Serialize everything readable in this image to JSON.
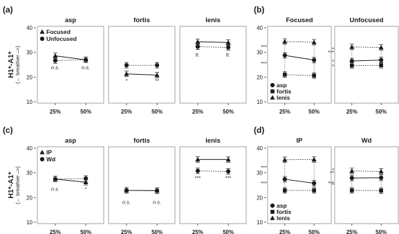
{
  "chart_data": [
    {
      "type": "line",
      "panel": "(a)",
      "ylabel": "H1*-A1*",
      "ylabel_sub": "(← breathier –>)",
      "ylim": [
        10,
        40
      ],
      "yticks": [
        "10",
        "20",
        "30",
        "40"
      ],
      "x": [
        "25%",
        "50%"
      ],
      "legend": {
        "placement": "top-left",
        "entries": [
          "Focused",
          "Unfocused"
        ]
      },
      "facets": [
        {
          "title": "asp",
          "series": [
            {
              "name": "Focused",
              "marker": "triangle",
              "linestyle": "solid",
              "values": [
                28.6,
                27.0
              ]
            },
            {
              "name": "Unfocused",
              "marker": "circle",
              "linestyle": "dotted",
              "values": [
                26.7,
                27.0
              ]
            }
          ],
          "annotations": [
            {
              "text": "n.s.",
              "x": "25%",
              "y": 23.2,
              "italic": true
            },
            {
              "text": "n.s.",
              "x": "50%",
              "y": 23.2,
              "italic": true
            }
          ]
        },
        {
          "title": "fortis",
          "series": [
            {
              "name": "Focused",
              "marker": "triangle",
              "linestyle": "solid",
              "values": [
                21.3,
                20.8
              ]
            },
            {
              "name": "Unfocused",
              "marker": "circle",
              "linestyle": "dotted",
              "values": [
                24.8,
                24.8
              ]
            }
          ],
          "annotations": [
            {
              "text": "*",
              "x": "25%",
              "y": 17.9
            },
            {
              "text": "**",
              "x": "50%",
              "y": 17.9
            }
          ]
        },
        {
          "title": "lenis",
          "series": [
            {
              "name": "Focused",
              "marker": "triangle",
              "linestyle": "solid",
              "values": [
                34.3,
                34.0
              ]
            },
            {
              "name": "Unfocused",
              "marker": "circle",
              "linestyle": "dotted",
              "values": [
                32.3,
                32.0
              ]
            }
          ],
          "annotations": [
            {
              "text": "tr.",
              "x": "25%",
              "y": 28.3,
              "italic": true
            },
            {
              "text": "tr.",
              "x": "50%",
              "y": 28.3,
              "italic": true
            }
          ]
        }
      ]
    },
    {
      "type": "line",
      "panel": "(b)",
      "ylim": [
        10,
        40
      ],
      "yticks": [
        "10",
        "20",
        "30",
        "40"
      ],
      "x": [
        "25%",
        "50%"
      ],
      "legend": {
        "placement": "bottom-left",
        "entries": [
          "asp",
          "fortis",
          "lenis"
        ]
      },
      "facets": [
        {
          "title": "Focused",
          "series": [
            {
              "name": "asp",
              "marker": "circle",
              "linestyle": "solid",
              "values": [
                28.8,
                26.9
              ]
            },
            {
              "name": "fortis",
              "marker": "square",
              "linestyle": "dotted",
              "values": [
                21.0,
                20.6
              ]
            },
            {
              "name": "lenis",
              "marker": "triangle",
              "linestyle": "dotted",
              "values": [
                34.4,
                34.1
              ]
            }
          ],
          "annotations": [
            {
              "text": "***",
              "side": "left",
              "y": 31.6
            },
            {
              "text": "***",
              "side": "left",
              "y": 24.9
            },
            {
              "text": "***",
              "side": "right",
              "y": 30.6
            },
            {
              "text": "***",
              "side": "right",
              "y": 23.8
            }
          ]
        },
        {
          "title": "Unfocused",
          "series": [
            {
              "name": "asp",
              "marker": "circle",
              "linestyle": "solid",
              "values": [
                26.5,
                26.9
              ]
            },
            {
              "name": "fortis",
              "marker": "square",
              "linestyle": "dotted",
              "values": [
                24.7,
                24.8
              ]
            },
            {
              "name": "lenis",
              "marker": "triangle",
              "linestyle": "dotted",
              "values": [
                32.2,
                32.0
              ]
            }
          ],
          "annotations": [
            {
              "text": "***",
              "side": "left",
              "y": 29.3
            },
            {
              "text": "*",
              "side": "left",
              "y": 25.6
            },
            {
              "text": "***",
              "side": "right",
              "y": 29.8
            },
            {
              "text": "*",
              "side": "right",
              "y": 25.6
            }
          ]
        }
      ]
    },
    {
      "type": "line",
      "panel": "(c)",
      "ylabel": "H1*-A1*",
      "ylabel_sub": "(← breathier –>)",
      "ylim": [
        10,
        40
      ],
      "yticks": [
        "10",
        "20",
        "30",
        "40"
      ],
      "x": [
        "25%",
        "50%"
      ],
      "legend": {
        "placement": "top-left",
        "entries": [
          "IP",
          "Wd"
        ]
      },
      "facets": [
        {
          "title": "asp",
          "series": [
            {
              "name": "IP",
              "marker": "triangle",
              "linestyle": "solid",
              "values": [
                27.5,
                26.2
              ]
            },
            {
              "name": "Wd",
              "marker": "circle",
              "linestyle": "dotted",
              "values": [
                27.5,
                27.7
              ]
            }
          ],
          "annotations": [
            {
              "text": "n.s.",
              "x": "25%",
              "y": 22.7,
              "italic": true
            },
            {
              "text": "*",
              "x": "50%",
              "y": 22.7
            }
          ]
        },
        {
          "title": "fortis",
          "series": [
            {
              "name": "IP",
              "marker": "triangle",
              "linestyle": "solid",
              "values": [
                22.9,
                22.8
              ]
            },
            {
              "name": "Wd",
              "marker": "circle",
              "linestyle": "dotted",
              "values": [
                22.9,
                22.8
              ]
            }
          ],
          "annotations": [
            {
              "text": "n.s.",
              "x": "25%",
              "y": 17.5,
              "italic": true
            },
            {
              "text": "n.s.",
              "x": "50%",
              "y": 17.5,
              "italic": true
            }
          ]
        },
        {
          "title": "lenis",
          "series": [
            {
              "name": "IP",
              "marker": "triangle",
              "linestyle": "solid",
              "values": [
                35.4,
                35.4
              ]
            },
            {
              "name": "Wd",
              "marker": "circle",
              "linestyle": "dotted",
              "values": [
                30.8,
                30.6
              ]
            }
          ],
          "annotations": [
            {
              "text": "***",
              "x": "25%",
              "y": 27.2
            },
            {
              "text": "***",
              "x": "50%",
              "y": 27.2
            }
          ]
        }
      ]
    },
    {
      "type": "line",
      "panel": "(d)",
      "ylim": [
        10,
        40
      ],
      "yticks": [
        "10",
        "20",
        "30",
        "40"
      ],
      "x": [
        "25%",
        "50%"
      ],
      "legend": {
        "placement": "bottom-left",
        "entries": [
          "asp",
          "fortis",
          "lenis"
        ]
      },
      "facets": [
        {
          "title": "IP",
          "series": [
            {
              "name": "asp",
              "marker": "circle",
              "linestyle": "solid",
              "values": [
                27.4,
                25.8
              ]
            },
            {
              "name": "fortis",
              "marker": "square",
              "linestyle": "dotted",
              "values": [
                22.9,
                22.9
              ]
            },
            {
              "name": "lenis",
              "marker": "triangle",
              "linestyle": "dotted",
              "values": [
                35.3,
                35.4
              ]
            }
          ],
          "annotations": [
            {
              "text": "***",
              "side": "left",
              "y": 31.4
            },
            {
              "text": "***",
              "side": "left",
              "y": 25.1
            },
            {
              "text": "***",
              "side": "right",
              "y": 30.5
            },
            {
              "text": "**",
              "side": "right",
              "y": 24.5
            }
          ]
        },
        {
          "title": "Wd",
          "series": [
            {
              "name": "asp",
              "marker": "circle",
              "linestyle": "solid",
              "values": [
                27.9,
                28.0
              ]
            },
            {
              "name": "fortis",
              "marker": "square",
              "linestyle": "dotted",
              "values": [
                22.9,
                22.8
              ]
            },
            {
              "name": "lenis",
              "marker": "triangle",
              "linestyle": "dotted",
              "values": [
                30.8,
                30.6
              ]
            }
          ],
          "annotations": [
            {
              "text": "**",
              "side": "left",
              "y": 29.4
            },
            {
              "text": "***",
              "side": "left",
              "y": 25.1
            },
            {
              "text": "*",
              "side": "right",
              "y": 29.4
            },
            {
              "text": "***",
              "side": "right",
              "y": 25.1
            }
          ]
        }
      ]
    }
  ]
}
